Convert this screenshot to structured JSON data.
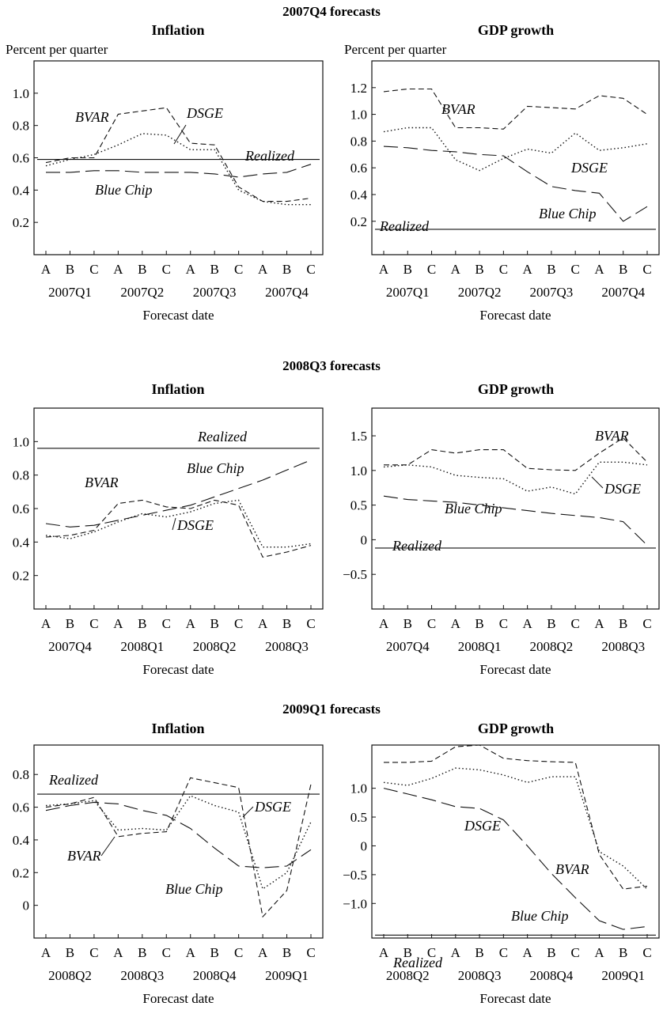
{
  "figure": {
    "groups": [
      {
        "title": "2007Q4 forecasts",
        "panels": [
          {
            "title": "Inflation",
            "ylabel": "Percent per quarter",
            "xlabel": "Forecast date",
            "abc": [
              "A",
              "B",
              "C",
              "A",
              "B",
              "C",
              "A",
              "B",
              "C",
              "A",
              "B",
              "C"
            ],
            "quarters": [
              "2007Q1",
              "2007Q2",
              "2007Q3",
              "2007Q4"
            ]
          },
          {
            "title": "GDP growth",
            "ylabel": "Percent per quarter",
            "xlabel": "Forecast date",
            "abc": [
              "A",
              "B",
              "C",
              "A",
              "B",
              "C",
              "A",
              "B",
              "C",
              "A",
              "B",
              "C"
            ],
            "quarters": [
              "2007Q1",
              "2007Q2",
              "2007Q3",
              "2007Q4"
            ]
          }
        ]
      },
      {
        "title": "2008Q3 forecasts",
        "panels": [
          {
            "title": "Inflation",
            "ylabel": "",
            "xlabel": "Forecast date",
            "abc": [
              "A",
              "B",
              "C",
              "A",
              "B",
              "C",
              "A",
              "B",
              "C",
              "A",
              "B",
              "C"
            ],
            "quarters": [
              "2007Q4",
              "2008Q1",
              "2008Q2",
              "2008Q3"
            ]
          },
          {
            "title": "GDP growth",
            "ylabel": "",
            "xlabel": "Forecast date",
            "abc": [
              "A",
              "B",
              "C",
              "A",
              "B",
              "C",
              "A",
              "B",
              "C",
              "A",
              "B",
              "C"
            ],
            "quarters": [
              "2007Q4",
              "2008Q1",
              "2008Q2",
              "2008Q3"
            ]
          }
        ]
      },
      {
        "title": "2009Q1 forecasts",
        "panels": [
          {
            "title": "Inflation",
            "ylabel": "",
            "xlabel": "Forecast date",
            "abc": [
              "A",
              "B",
              "C",
              "A",
              "B",
              "C",
              "A",
              "B",
              "C",
              "A",
              "B",
              "C"
            ],
            "quarters": [
              "2008Q2",
              "2008Q3",
              "2008Q4",
              "2009Q1"
            ]
          },
          {
            "title": "GDP growth",
            "ylabel": "",
            "xlabel": "Forecast date",
            "abc": [
              "A",
              "B",
              "C",
              "A",
              "B",
              "C",
              "A",
              "B",
              "C",
              "A",
              "B",
              "C"
            ],
            "quarters": [
              "2008Q2",
              "2008Q3",
              "2008Q4",
              "2009Q1"
            ]
          }
        ]
      }
    ]
  },
  "chart_data": [
    {
      "type": "line",
      "group": "2007Q4 forecasts",
      "title": "Inflation",
      "ylabel": "Percent per quarter",
      "xlabel": "Forecast date",
      "ylim": [
        0,
        1.2
      ],
      "yticks": [
        "0.2",
        "0.4",
        "0.6",
        "0.8",
        "1.0"
      ],
      "ytick_values": [
        0.2,
        0.4,
        0.6,
        0.8,
        1.0
      ],
      "series": [
        {
          "name": "BVAR",
          "style": "short-dash",
          "values": [
            0.57,
            0.6,
            0.6,
            0.87,
            0.89,
            0.91,
            0.69,
            0.68,
            0.42,
            0.33,
            0.33,
            0.35
          ]
        },
        {
          "name": "DSGE",
          "style": "dotted",
          "values": [
            0.55,
            0.59,
            0.62,
            0.68,
            0.75,
            0.74,
            0.65,
            0.65,
            0.4,
            0.33,
            0.31,
            0.31
          ]
        },
        {
          "name": "Blue Chip",
          "style": "long-dash",
          "values": [
            0.51,
            0.51,
            0.52,
            0.52,
            0.51,
            0.51,
            0.51,
            0.5,
            0.48,
            0.5,
            0.51,
            0.56
          ]
        },
        {
          "name": "Realized",
          "style": "solid",
          "values": [
            0.59,
            0.59,
            0.59,
            0.59,
            0.59,
            0.59,
            0.59,
            0.59,
            0.59,
            0.59,
            0.59,
            0.59
          ]
        }
      ]
    },
    {
      "type": "line",
      "group": "2007Q4 forecasts",
      "title": "GDP growth",
      "ylabel": "Percent per quarter",
      "xlabel": "Forecast date",
      "ylim": [
        -0.05,
        1.4
      ],
      "yticks": [
        "0.2",
        "0.4",
        "0.6",
        "0.8",
        "1.0",
        "1.2"
      ],
      "ytick_values": [
        0.2,
        0.4,
        0.6,
        0.8,
        1.0,
        1.2
      ],
      "series": [
        {
          "name": "BVAR",
          "style": "short-dash",
          "values": [
            1.17,
            1.19,
            1.19,
            0.9,
            0.9,
            0.89,
            1.06,
            1.05,
            1.04,
            1.14,
            1.12,
            1.0
          ]
        },
        {
          "name": "DSGE",
          "style": "dotted",
          "values": [
            0.87,
            0.9,
            0.9,
            0.66,
            0.58,
            0.67,
            0.74,
            0.71,
            0.86,
            0.73,
            0.75,
            0.78
          ]
        },
        {
          "name": "Blue Chip",
          "style": "long-dash",
          "values": [
            0.76,
            0.75,
            0.73,
            0.72,
            0.7,
            0.69,
            0.57,
            0.46,
            0.43,
            0.41,
            0.2,
            0.31
          ]
        },
        {
          "name": "Realized",
          "style": "solid",
          "values": [
            0.14,
            0.14,
            0.14,
            0.14,
            0.14,
            0.14,
            0.14,
            0.14,
            0.14,
            0.14,
            0.14,
            0.14
          ]
        }
      ]
    },
    {
      "type": "line",
      "group": "2008Q3 forecasts",
      "title": "Inflation",
      "xlabel": "Forecast date",
      "ylim": [
        0,
        1.2
      ],
      "yticks": [
        "0.2",
        "0.4",
        "0.6",
        "0.8",
        "1.0"
      ],
      "ytick_values": [
        0.2,
        0.4,
        0.6,
        0.8,
        1.0
      ],
      "series": [
        {
          "name": "BVAR",
          "style": "short-dash",
          "values": [
            0.43,
            0.44,
            0.47,
            0.63,
            0.65,
            0.61,
            0.6,
            0.65,
            0.62,
            0.31,
            0.34,
            0.38
          ]
        },
        {
          "name": "DSGE",
          "style": "dotted",
          "values": [
            0.44,
            0.42,
            0.46,
            0.52,
            0.57,
            0.55,
            0.58,
            0.63,
            0.65,
            0.37,
            0.37,
            0.39
          ]
        },
        {
          "name": "Blue Chip",
          "style": "long-dash",
          "values": [
            0.51,
            0.49,
            0.5,
            0.53,
            0.56,
            0.59,
            0.62,
            0.67,
            0.72,
            0.77,
            0.83,
            0.89
          ]
        },
        {
          "name": "Realized",
          "style": "solid",
          "values": [
            0.96,
            0.96,
            0.96,
            0.96,
            0.96,
            0.96,
            0.96,
            0.96,
            0.96,
            0.96,
            0.96,
            0.96
          ]
        }
      ]
    },
    {
      "type": "line",
      "group": "2008Q3 forecasts",
      "title": "GDP growth",
      "xlabel": "Forecast date",
      "ylim": [
        -1.0,
        1.9
      ],
      "yticks": [
        "−0.5",
        "0",
        "0.5",
        "1.0",
        "1.5"
      ],
      "ytick_values": [
        -0.5,
        0,
        0.5,
        1.0,
        1.5
      ],
      "series": [
        {
          "name": "BVAR",
          "style": "short-dash",
          "values": [
            1.08,
            1.08,
            1.3,
            1.25,
            1.3,
            1.3,
            1.03,
            1.01,
            1.0,
            1.25,
            1.47,
            1.12
          ]
        },
        {
          "name": "DSGE",
          "style": "dotted",
          "values": [
            1.05,
            1.08,
            1.05,
            0.93,
            0.9,
            0.88,
            0.7,
            0.76,
            0.66,
            1.12,
            1.12,
            1.08
          ]
        },
        {
          "name": "Blue Chip",
          "style": "long-dash",
          "values": [
            0.63,
            0.58,
            0.56,
            0.54,
            0.5,
            0.46,
            0.42,
            0.38,
            0.35,
            0.32,
            0.26,
            -0.08
          ]
        },
        {
          "name": "Realized",
          "style": "solid",
          "values": [
            -0.12,
            -0.12,
            -0.12,
            -0.12,
            -0.12,
            -0.12,
            -0.12,
            -0.12,
            -0.12,
            -0.12,
            -0.12,
            -0.12
          ]
        }
      ]
    },
    {
      "type": "line",
      "group": "2009Q1 forecasts",
      "title": "Inflation",
      "xlabel": "Forecast date",
      "ylim": [
        -0.2,
        0.98
      ],
      "yticks": [
        "0",
        "0.2",
        "0.4",
        "0.6",
        "0.8"
      ],
      "ytick_values": [
        0,
        0.2,
        0.4,
        0.6,
        0.8
      ],
      "series": [
        {
          "name": "BVAR",
          "style": "short-dash",
          "values": [
            0.6,
            0.62,
            0.66,
            0.42,
            0.44,
            0.45,
            0.78,
            0.75,
            0.72,
            -0.07,
            0.09,
            0.74
          ]
        },
        {
          "name": "DSGE",
          "style": "dotted",
          "values": [
            0.61,
            0.62,
            0.64,
            0.46,
            0.47,
            0.46,
            0.67,
            0.61,
            0.57,
            0.1,
            0.2,
            0.51
          ]
        },
        {
          "name": "Blue Chip",
          "style": "long-dash",
          "values": [
            0.58,
            0.61,
            0.63,
            0.62,
            0.58,
            0.55,
            0.47,
            0.35,
            0.24,
            0.23,
            0.24,
            0.34
          ]
        },
        {
          "name": "Realized",
          "style": "solid",
          "values": [
            0.68,
            0.68,
            0.68,
            0.68,
            0.68,
            0.68,
            0.68,
            0.68,
            0.68,
            0.68,
            0.68,
            0.68
          ]
        }
      ]
    },
    {
      "type": "line",
      "group": "2009Q1 forecasts",
      "title": "GDP growth",
      "xlabel": "Forecast date",
      "ylim": [
        -1.6,
        1.75
      ],
      "yticks": [
        "−1.0",
        "−0.5",
        "0",
        "0.5",
        "1.0"
      ],
      "ytick_values": [
        -1.0,
        -0.5,
        0,
        0.5,
        1.0
      ],
      "series": [
        {
          "name": "BVAR",
          "style": "short-dash",
          "values": [
            1.45,
            1.45,
            1.47,
            1.72,
            1.75,
            1.52,
            1.48,
            1.46,
            1.45,
            -0.15,
            -0.75,
            -0.7
          ]
        },
        {
          "name": "DSGE",
          "style": "dotted",
          "values": [
            1.1,
            1.05,
            1.17,
            1.35,
            1.32,
            1.23,
            1.1,
            1.2,
            1.2,
            -0.1,
            -0.35,
            -0.75
          ]
        },
        {
          "name": "Blue Chip",
          "style": "long-dash",
          "values": [
            1.0,
            0.9,
            0.8,
            0.68,
            0.65,
            0.45,
            0.0,
            -0.48,
            -0.9,
            -1.3,
            -1.45,
            -1.4
          ]
        },
        {
          "name": "Realized",
          "style": "solid",
          "values": [
            -1.55,
            -1.55,
            -1.55,
            -1.55,
            -1.55,
            -1.55,
            -1.55,
            -1.55,
            -1.55,
            -1.55,
            -1.55,
            -1.55
          ]
        }
      ]
    }
  ]
}
